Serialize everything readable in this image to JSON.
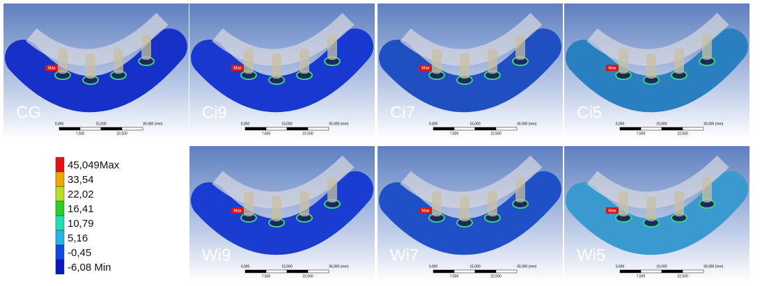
{
  "legend": {
    "labels": [
      "45,049Max",
      "33,54",
      "22,02",
      "16,41",
      "10,79",
      "5,16",
      "-0,45",
      "-6,08 Min"
    ]
  },
  "panels": [
    {
      "label": "CG",
      "max_tag": "Max",
      "scale_top": [
        "0,000",
        "15,000",
        "30,000 (mm)"
      ],
      "scale_bottom": [
        "7,500",
        "22,500"
      ]
    },
    {
      "label": "Ci9",
      "max_tag": "Max",
      "scale_top": [
        "0,000",
        "15,000",
        "30,000 (mm)"
      ],
      "scale_bottom": [
        "7,500",
        "22,500"
      ]
    },
    {
      "label": "Ci7",
      "max_tag": "Max",
      "scale_top": [
        "0,000",
        "15,000",
        "30,000 (mm)"
      ],
      "scale_bottom": [
        "7,500",
        "22,500"
      ]
    },
    {
      "label": "Ci5",
      "max_tag": "Max",
      "scale_top": [
        "0,000",
        "15,000",
        "30,000 (mm)"
      ],
      "scale_bottom": [
        "7,500",
        "22,500"
      ]
    },
    {
      "label": "Wi9",
      "max_tag": "Max",
      "scale_top": [
        "0,000",
        "15,000",
        "30,000 (mm)"
      ],
      "scale_bottom": [
        "7,500",
        "22,500"
      ]
    },
    {
      "label": "Wi7",
      "max_tag": "Max",
      "scale_top": [
        "0,000",
        "15,000",
        "30,000 (mm)"
      ],
      "scale_bottom": [
        "7,500",
        "22,500"
      ]
    },
    {
      "label": "Wi5",
      "max_tag": "Max",
      "scale_top": [
        "0,000",
        "15,000",
        "30,000 (mm)"
      ],
      "scale_bottom": [
        "7,500",
        "22,500"
      ]
    }
  ]
}
